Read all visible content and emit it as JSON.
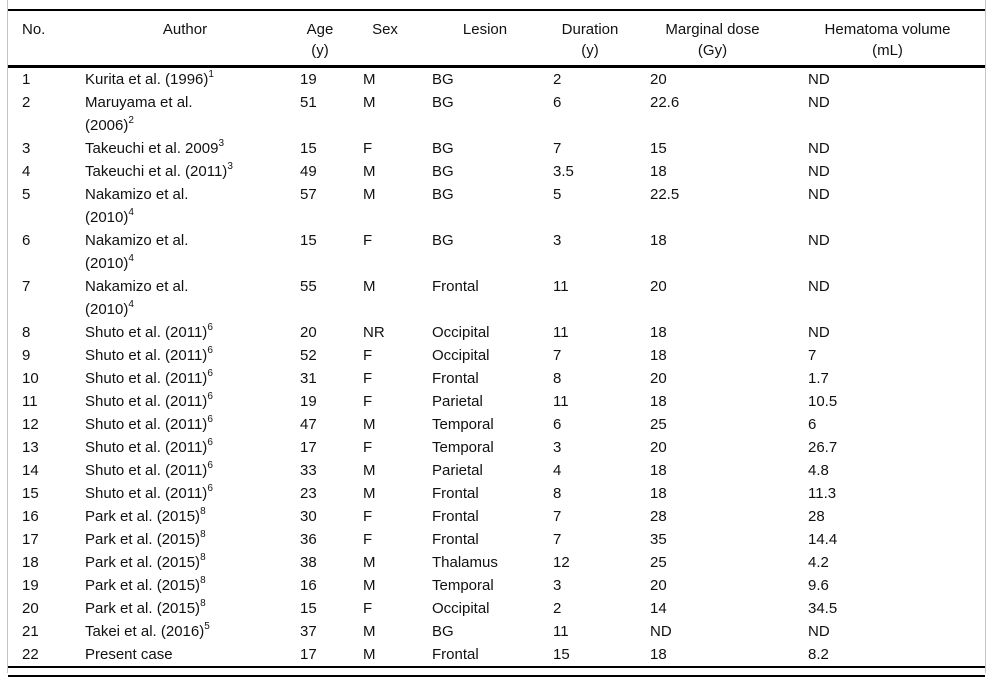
{
  "table": {
    "columns": [
      {
        "key": "no",
        "label": "No.",
        "unit": ""
      },
      {
        "key": "author",
        "label": "Author",
        "unit": ""
      },
      {
        "key": "age",
        "label": "Age",
        "unit": "(y)"
      },
      {
        "key": "sex",
        "label": "Sex",
        "unit": ""
      },
      {
        "key": "lesion",
        "label": "Lesion",
        "unit": ""
      },
      {
        "key": "duration",
        "label": "Duration",
        "unit": "(y)"
      },
      {
        "key": "dose",
        "label": "Marginal dose",
        "unit": "(Gy)"
      },
      {
        "key": "hematoma",
        "label": "Hematoma volume",
        "unit": "(mL)"
      }
    ],
    "rows": [
      {
        "no": "1",
        "author_lines": [
          "Kurita et al. (1996)"
        ],
        "author_sup": "1",
        "age": "19",
        "sex": "M",
        "lesion": "BG",
        "duration": "2",
        "dose": "20",
        "hematoma": "ND"
      },
      {
        "no": "2",
        "author_lines": [
          "Maruyama et al.",
          "(2006)"
        ],
        "author_sup": "2",
        "age": "51",
        "sex": "M",
        "lesion": "BG",
        "duration": "6",
        "dose": "22.6",
        "hematoma": "ND"
      },
      {
        "no": "3",
        "author_lines": [
          "Takeuchi et al. 2009"
        ],
        "author_sup": "3",
        "age": "15",
        "sex": "F",
        "lesion": "BG",
        "duration": "7",
        "dose": "15",
        "hematoma": "ND"
      },
      {
        "no": "4",
        "author_lines": [
          "Takeuchi et al. (2011)"
        ],
        "author_sup": "3",
        "age": "49",
        "sex": "M",
        "lesion": "BG",
        "duration": "3.5",
        "dose": "18",
        "hematoma": "ND"
      },
      {
        "no": "5",
        "author_lines": [
          "Nakamizo et al.",
          "(2010)"
        ],
        "author_sup": "4",
        "age": "57",
        "sex": "M",
        "lesion": "BG",
        "duration": "5",
        "dose": "22.5",
        "hematoma": "ND"
      },
      {
        "no": "6",
        "author_lines": [
          "Nakamizo et al.",
          "(2010)"
        ],
        "author_sup": "4",
        "age": "15",
        "sex": "F",
        "lesion": "BG",
        "duration": "3",
        "dose": "18",
        "hematoma": "ND"
      },
      {
        "no": "7",
        "author_lines": [
          "Nakamizo et al.",
          "(2010)"
        ],
        "author_sup": "4",
        "age": "55",
        "sex": "M",
        "lesion": "Frontal",
        "duration": "11",
        "dose": "20",
        "hematoma": "ND"
      },
      {
        "no": "8",
        "author_lines": [
          "Shuto et al. (2011)"
        ],
        "author_sup": "6",
        "age": "20",
        "sex": "NR",
        "lesion": "Occipital",
        "duration": "11",
        "dose": "18",
        "hematoma": "ND"
      },
      {
        "no": "9",
        "author_lines": [
          "Shuto et al. (2011)"
        ],
        "author_sup": "6",
        "age": "52",
        "sex": "F",
        "lesion": "Occipital",
        "duration": "7",
        "dose": "18",
        "hematoma": "7"
      },
      {
        "no": "10",
        "author_lines": [
          "Shuto et al. (2011)"
        ],
        "author_sup": "6",
        "age": "31",
        "sex": "F",
        "lesion": "Frontal",
        "duration": "8",
        "dose": "20",
        "hematoma": "1.7"
      },
      {
        "no": "11",
        "author_lines": [
          "Shuto et al. (2011)"
        ],
        "author_sup": "6",
        "age": "19",
        "sex": "F",
        "lesion": "Parietal",
        "duration": "11",
        "dose": "18",
        "hematoma": "10.5"
      },
      {
        "no": "12",
        "author_lines": [
          "Shuto et al. (2011)"
        ],
        "author_sup": "6",
        "age": "47",
        "sex": "M",
        "lesion": "Temporal",
        "duration": "6",
        "dose": "25",
        "hematoma": "6"
      },
      {
        "no": "13",
        "author_lines": [
          "Shuto et al. (2011)"
        ],
        "author_sup": "6",
        "age": "17",
        "sex": "F",
        "lesion": "Temporal",
        "duration": "3",
        "dose": "20",
        "hematoma": "26.7"
      },
      {
        "no": "14",
        "author_lines": [
          "Shuto et al. (2011)"
        ],
        "author_sup": "6",
        "age": "33",
        "sex": "M",
        "lesion": "Parietal",
        "duration": "4",
        "dose": "18",
        "hematoma": "4.8"
      },
      {
        "no": "15",
        "author_lines": [
          "Shuto et al. (2011)"
        ],
        "author_sup": "6",
        "age": "23",
        "sex": "M",
        "lesion": "Frontal",
        "duration": "8",
        "dose": "18",
        "hematoma": "11.3"
      },
      {
        "no": "16",
        "author_lines": [
          "Park et al. (2015)"
        ],
        "author_sup": "8",
        "age": "30",
        "sex": "F",
        "lesion": "Frontal",
        "duration": "7",
        "dose": "28",
        "hematoma": "28"
      },
      {
        "no": "17",
        "author_lines": [
          "Park et al. (2015)"
        ],
        "author_sup": "8",
        "age": "36",
        "sex": "F",
        "lesion": "Frontal",
        "duration": "7",
        "dose": "35",
        "hematoma": "14.4"
      },
      {
        "no": "18",
        "author_lines": [
          "Park et al. (2015)"
        ],
        "author_sup": "8",
        "age": "38",
        "sex": "M",
        "lesion": "Thalamus",
        "duration": "12",
        "dose": "25",
        "hematoma": "4.2"
      },
      {
        "no": "19",
        "author_lines": [
          "Park et al. (2015)"
        ],
        "author_sup": "8",
        "age": "16",
        "sex": "M",
        "lesion": "Temporal",
        "duration": "3",
        "dose": "20",
        "hematoma": "9.6"
      },
      {
        "no": "20",
        "author_lines": [
          "Park et al. (2015)"
        ],
        "author_sup": "8",
        "age": "15",
        "sex": "F",
        "lesion": "Occipital",
        "duration": "2",
        "dose": "14",
        "hematoma": "34.5"
      },
      {
        "no": "21",
        "author_lines": [
          "Takei et al. (2016)"
        ],
        "author_sup": "5",
        "age": "37",
        "sex": "M",
        "lesion": "BG",
        "duration": "11",
        "dose": "ND",
        "hematoma": "ND"
      },
      {
        "no": "22",
        "author_lines": [
          "Present case"
        ],
        "author_sup": "",
        "age": "17",
        "sex": "M",
        "lesion": "Frontal",
        "duration": "15",
        "dose": "18",
        "hematoma": "8.2"
      }
    ]
  }
}
